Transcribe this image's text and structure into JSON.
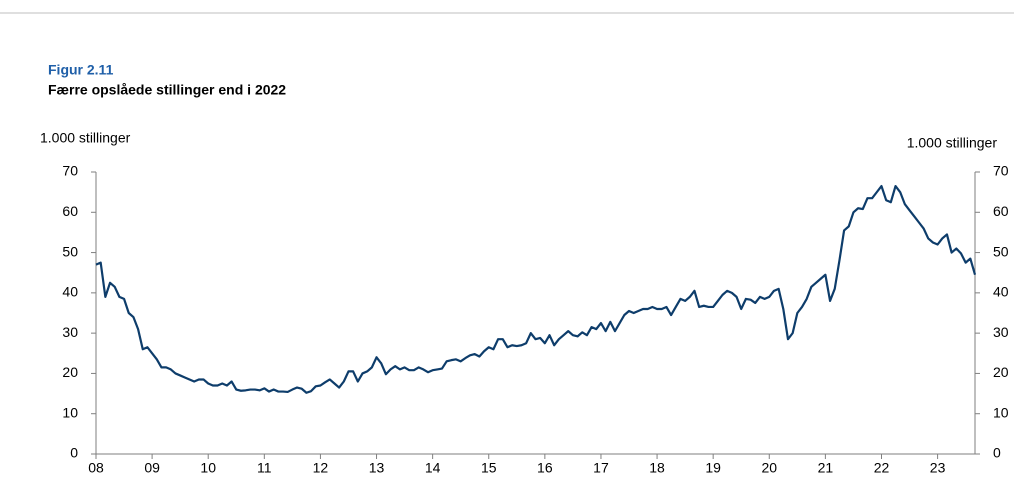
{
  "chart_data": {
    "type": "line",
    "title": "Figur 2.11",
    "subtitle": "Færre opslåede stillinger end i 2022",
    "ylabel": "1.000 stillinger",
    "y2label": "1.000 stillinger",
    "ylim": [
      0,
      70
    ],
    "yticks": [
      0,
      10,
      20,
      30,
      40,
      50,
      60,
      70
    ],
    "y2lim": [
      0,
      70
    ],
    "y2ticks": [
      0,
      10,
      20,
      30,
      40,
      50,
      60,
      70
    ],
    "grid": false,
    "categories": [
      "08",
      null,
      null,
      null,
      null,
      null,
      null,
      null,
      null,
      null,
      null,
      null,
      "09",
      null,
      null,
      null,
      null,
      null,
      null,
      null,
      null,
      null,
      null,
      null,
      "10",
      null,
      null,
      null,
      null,
      null,
      null,
      null,
      null,
      null,
      null,
      null,
      "11",
      null,
      null,
      null,
      null,
      null,
      null,
      null,
      null,
      null,
      null,
      null,
      "12",
      null,
      null,
      null,
      null,
      null,
      null,
      null,
      null,
      null,
      null,
      null,
      "13",
      null,
      null,
      null,
      null,
      null,
      null,
      null,
      null,
      null,
      null,
      null,
      "14",
      null,
      null,
      null,
      null,
      null,
      null,
      null,
      null,
      null,
      null,
      null,
      "15",
      null,
      null,
      null,
      null,
      null,
      null,
      null,
      null,
      null,
      null,
      null,
      "16",
      null,
      null,
      null,
      null,
      null,
      null,
      null,
      null,
      null,
      null,
      null,
      "17",
      null,
      null,
      null,
      null,
      null,
      null,
      null,
      null,
      null,
      null,
      null,
      "18",
      null,
      null,
      null,
      null,
      null,
      null,
      null,
      null,
      null,
      null,
      null,
      "19",
      null,
      null,
      null,
      null,
      null,
      null,
      null,
      null,
      null,
      null,
      null,
      "20",
      null,
      null,
      null,
      null,
      null,
      null,
      null,
      null,
      null,
      null,
      null,
      "21",
      null,
      null,
      null,
      null,
      null,
      null,
      null,
      null,
      null,
      null,
      null,
      "22",
      null,
      null,
      null,
      null,
      null,
      null,
      null,
      null,
      null,
      null,
      null,
      "23",
      null,
      null,
      null,
      null,
      null,
      null,
      null,
      null
    ],
    "series": [
      {
        "color": "#0e3d6b",
        "values": [
          47,
          47.5,
          39,
          42.5,
          41.5,
          39,
          38.5,
          35,
          34,
          31,
          26,
          26.5,
          25,
          23.5,
          21.5,
          21.5,
          21,
          20,
          19.5,
          19,
          18.5,
          18,
          18.5,
          18.5,
          17.5,
          17,
          17,
          17.5,
          17,
          18,
          16,
          15.7,
          15.8,
          16,
          16,
          15.8,
          16.3,
          15.5,
          16,
          15.5,
          15.5,
          15.4,
          16,
          16.5,
          16.2,
          15.2,
          15.6,
          16.8,
          17,
          17.8,
          18.5,
          17.5,
          16.5,
          18,
          20.5,
          20.5,
          18,
          20,
          20.5,
          21.5,
          24,
          22.5,
          19.8,
          21,
          21.8,
          21,
          21.5,
          20.8,
          20.8,
          21.5,
          21,
          20.3,
          20.8,
          21,
          21.2,
          23,
          23.3,
          23.5,
          23,
          23.8,
          24.5,
          24.8,
          24.2,
          25.5,
          26.5,
          26,
          28.5,
          28.5,
          26.5,
          27,
          26.8,
          27,
          27.5,
          30,
          28.5,
          28.8,
          27.5,
          29.5,
          27,
          28.5,
          29.5,
          30.5,
          29.5,
          29.2,
          30.2,
          29.5,
          31.5,
          31,
          32.5,
          30.5,
          32.8,
          30.5,
          32.5,
          34.5,
          35.5,
          35,
          35.5,
          36,
          36,
          36.5,
          36,
          36,
          36.5,
          34.5,
          36.5,
          38.5,
          38,
          39,
          40.5,
          36.5,
          36.8,
          36.5,
          36.5,
          38,
          39.5,
          40.5,
          40,
          39,
          36,
          38.5,
          38.3,
          37.5,
          39,
          38.5,
          39,
          40.5,
          41,
          36,
          28.5,
          30,
          35,
          36.5,
          38.5,
          41.5,
          42.5,
          43.5,
          44.5,
          38,
          41,
          48,
          55.5,
          56.5,
          60,
          61,
          60.8,
          63.5,
          63.5,
          65,
          66.5,
          63,
          62.5,
          66.5,
          65,
          62,
          60.5,
          59,
          57.5,
          56,
          53.5,
          52.5,
          52,
          53.5,
          54.5,
          50,
          51,
          49.8,
          47.5,
          48.5,
          44.5
        ]
      }
    ]
  }
}
